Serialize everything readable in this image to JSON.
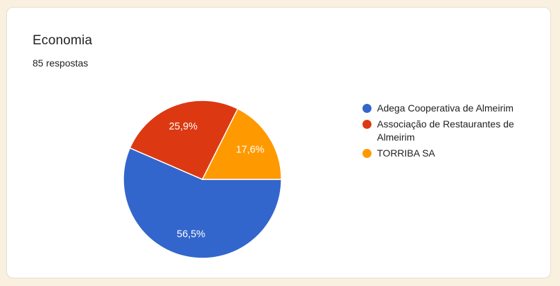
{
  "card": {
    "title": "Economia",
    "subtitle": "85 respostas"
  },
  "chart_data": {
    "type": "pie",
    "title": "Economia",
    "responses_label": "85 respostas",
    "response_count": 85,
    "legend_position": "right",
    "start_angle_deg": 0,
    "direction": "clockwise",
    "slices": [
      {
        "label": "Adega Cooperativa de Almeirim",
        "percent": 56.5,
        "display": "56,5%",
        "color": "#3366CC"
      },
      {
        "label": "Associação de Restaurantes de Almeirim",
        "percent": 25.9,
        "display": "25,9%",
        "color": "#DC3912"
      },
      {
        "label": "TORRIBA SA",
        "percent": 17.6,
        "display": "17,6%",
        "color": "#FF9900"
      }
    ]
  },
  "colors": {
    "page_background": "#FAF0E0",
    "card_background": "#FFFFFF",
    "card_border": "#E1DED4",
    "title_text": "#202124",
    "legend_text": "#212121",
    "slice_label_text": "#FFFFFF"
  }
}
